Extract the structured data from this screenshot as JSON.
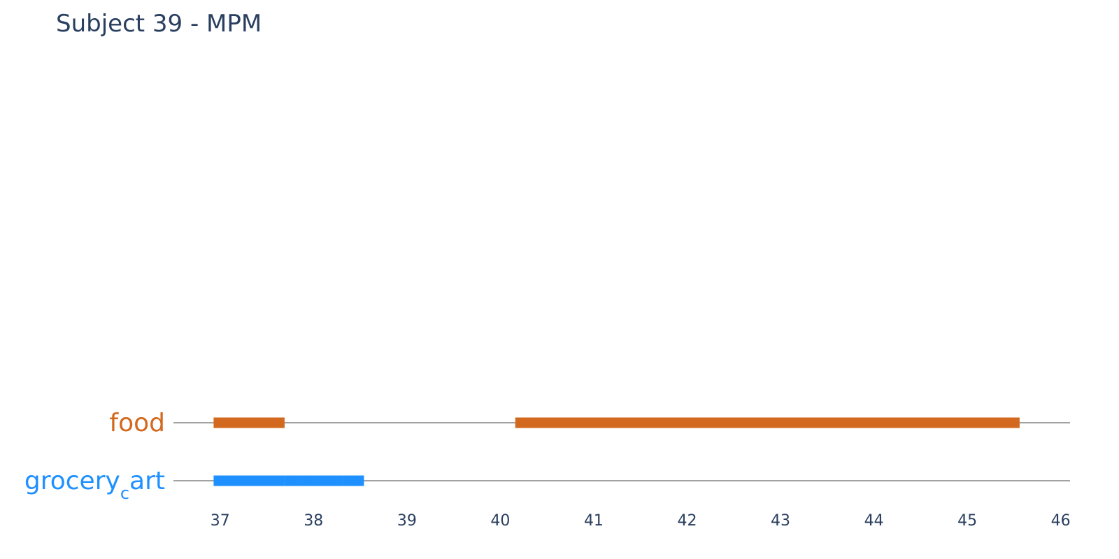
{
  "chart_data": {
    "type": "timeline",
    "title": "Subject 39 - MPM",
    "xlabel": "",
    "ylabel": "",
    "xlim": [
      36.5,
      46.1
    ],
    "x_ticks": [
      37,
      38,
      39,
      40,
      41,
      42,
      43,
      44,
      45,
      46
    ],
    "grid": false,
    "categories": [
      {
        "label": "food",
        "color": "#d2691e",
        "segments": [
          [
            36.93,
            37.69
          ],
          [
            40.16,
            45.56
          ]
        ]
      },
      {
        "label_main": "grocery",
        "label_sub": "c",
        "label_tail": "art",
        "color": "#1e90ff",
        "segments": [
          [
            36.93,
            37.69
          ],
          [
            37.69,
            37.87
          ],
          [
            37.87,
            37.99
          ],
          [
            37.99,
            38.32
          ],
          [
            38.32,
            38.54
          ]
        ]
      }
    ]
  }
}
